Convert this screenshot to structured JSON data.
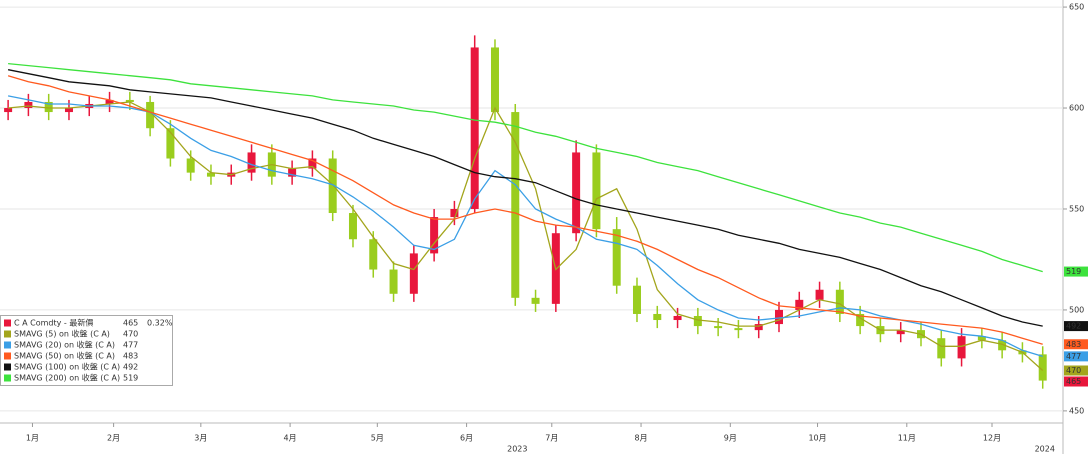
{
  "chart_data": {
    "type": "candlestick",
    "candle_name": "C A Comdty - 最新價",
    "change_label": "0.32%",
    "up_color": "#e8173c",
    "down_color": "#9acd1e",
    "x": [
      0,
      1,
      2,
      3,
      4,
      5,
      6,
      7,
      8,
      9,
      10,
      11,
      12,
      13,
      14,
      15,
      16,
      17,
      18,
      19,
      20,
      21,
      22,
      23,
      24,
      25,
      26,
      27,
      28,
      29,
      30,
      31,
      32,
      33,
      34,
      35,
      36,
      37,
      38,
      39,
      40,
      41,
      42,
      43,
      44,
      45,
      46,
      47,
      48,
      49,
      50,
      51
    ],
    "open": [
      598,
      600,
      603,
      598,
      600,
      602,
      604,
      603,
      590,
      575,
      568,
      566,
      568,
      578,
      566,
      570,
      575,
      548,
      535,
      520,
      508,
      528,
      546,
      550,
      630,
      598,
      506,
      503,
      538,
      578,
      540,
      512,
      498,
      495,
      497,
      492,
      491,
      490,
      493,
      500,
      505,
      510,
      498,
      492,
      488,
      490,
      486,
      476,
      487,
      485,
      480,
      478
    ],
    "high": [
      604,
      607,
      607,
      604,
      606,
      608,
      608,
      606,
      594,
      579,
      572,
      572,
      582,
      582,
      574,
      579,
      579,
      552,
      539,
      524,
      532,
      550,
      554,
      636,
      634,
      602,
      510,
      542,
      584,
      582,
      546,
      516,
      502,
      501,
      501,
      496,
      495,
      497,
      504,
      509,
      514,
      514,
      502,
      496,
      494,
      494,
      490,
      491,
      491,
      489,
      484,
      482
    ],
    "low": [
      594,
      596,
      594,
      594,
      596,
      598,
      599,
      586,
      571,
      564,
      562,
      562,
      564,
      562,
      562,
      566,
      544,
      531,
      516,
      504,
      504,
      524,
      542,
      548,
      594,
      502,
      499,
      499,
      534,
      536,
      508,
      494,
      491,
      491,
      488,
      487,
      486,
      486,
      489,
      496,
      501,
      494,
      488,
      484,
      484,
      482,
      472,
      472,
      481,
      476,
      474,
      461
    ],
    "close": [
      600,
      603,
      598,
      600,
      602,
      604,
      603,
      590,
      575,
      568,
      566,
      568,
      578,
      566,
      570,
      575,
      548,
      535,
      520,
      508,
      528,
      546,
      550,
      630,
      598,
      506,
      503,
      538,
      578,
      540,
      512,
      498,
      495,
      497,
      492,
      491,
      490,
      493,
      500,
      505,
      510,
      498,
      492,
      488,
      490,
      486,
      476,
      487,
      485,
      480,
      478,
      465
    ],
    "series": [
      {
        "name": "SMAVG (5)  on 收盤 (C A)",
        "color": "#a3a51c",
        "values": [
          600,
          601,
          600,
          600,
          601,
          602,
          603,
          598,
          588,
          576,
          568,
          567,
          570,
          572,
          570,
          571,
          562,
          550,
          536,
          523,
          520,
          533,
          545,
          575,
          600,
          583,
          560,
          520,
          530,
          555,
          560,
          540,
          510,
          498,
          495,
          494,
          492,
          492,
          495,
          500,
          505,
          503,
          496,
          490,
          490,
          488,
          482,
          482,
          485,
          483,
          479,
          470
        ]
      },
      {
        "name": "SMAVG (20)  on 收盤 (C A)",
        "color": "#3b9fe6",
        "values": [
          606,
          604,
          602,
          602,
          601,
          601,
          600,
          598,
          592,
          585,
          579,
          576,
          572,
          569,
          567,
          565,
          562,
          556,
          549,
          541,
          532,
          530,
          535,
          555,
          569,
          562,
          550,
          545,
          541,
          535,
          533,
          530,
          522,
          513,
          505,
          500,
          496,
          495,
          496,
          497,
          499,
          501,
          500,
          497,
          495,
          493,
          490,
          488,
          487,
          485,
          480,
          477
        ]
      },
      {
        "name": "SMAVG (50)  on 收盤 (C A)",
        "color": "#ff5a1f",
        "values": [
          616,
          613,
          611,
          608,
          606,
          604,
          601,
          598,
          595,
          592,
          589,
          586,
          583,
          580,
          577,
          574,
          569,
          564,
          558,
          552,
          548,
          545,
          545,
          548,
          550,
          548,
          544,
          542,
          541,
          539,
          537,
          534,
          530,
          525,
          520,
          516,
          511,
          506,
          502,
          501,
          500,
          499,
          497,
          496,
          495,
          494,
          493,
          492,
          491,
          489,
          486,
          483
        ]
      },
      {
        "name": "SMAVG (100)  on 收盤 (C A)",
        "color": "#111111",
        "values": [
          619,
          617,
          615,
          613,
          612,
          611,
          609,
          608,
          607,
          606,
          605,
          603,
          601,
          599,
          597,
          595,
          592,
          589,
          585,
          582,
          579,
          576,
          572,
          568,
          566,
          565,
          563,
          559,
          555,
          552,
          550,
          548,
          546,
          544,
          542,
          540,
          537,
          535,
          533,
          530,
          528,
          526,
          523,
          520,
          516,
          512,
          509,
          505,
          501,
          497,
          494,
          492
        ]
      },
      {
        "name": "SMAVG (200)  on 收盤 (C A)",
        "color": "#3de23d",
        "values": [
          622,
          621,
          620,
          619,
          618,
          617,
          616,
          615,
          614,
          612,
          611,
          610,
          609,
          608,
          607,
          606,
          604,
          603,
          602,
          601,
          599,
          598,
          596,
          594,
          593,
          591,
          588,
          586,
          583,
          580,
          578,
          576,
          573,
          571,
          569,
          566,
          563,
          560,
          557,
          554,
          551,
          548,
          546,
          543,
          541,
          538,
          535,
          532,
          529,
          525,
          522,
          519
        ]
      }
    ],
    "ylim": [
      444,
      653.5
    ],
    "yticks": [
      450,
      500,
      550,
      600,
      650
    ],
    "xlim": [
      -0.4,
      52.0
    ],
    "xticks": [
      {
        "value": 1.2,
        "label": "1月"
      },
      {
        "value": 5.2,
        "label": "2月"
      },
      {
        "value": 9.5,
        "label": "3月"
      },
      {
        "value": 13.9,
        "label": "4月"
      },
      {
        "value": 18.2,
        "label": "5月"
      },
      {
        "value": 22.6,
        "label": "6月"
      },
      {
        "value": 26.8,
        "label": "7月"
      },
      {
        "value": 31.2,
        "label": "8月"
      },
      {
        "value": 35.6,
        "label": "9月"
      },
      {
        "value": 39.9,
        "label": "10月"
      },
      {
        "value": 44.3,
        "label": "11月"
      },
      {
        "value": 48.5,
        "label": "12月"
      }
    ],
    "year_ticks": [
      {
        "value": 25.1,
        "label": "2023"
      },
      {
        "value": 51.1,
        "label": "2024"
      }
    ],
    "grid": true
  }
}
